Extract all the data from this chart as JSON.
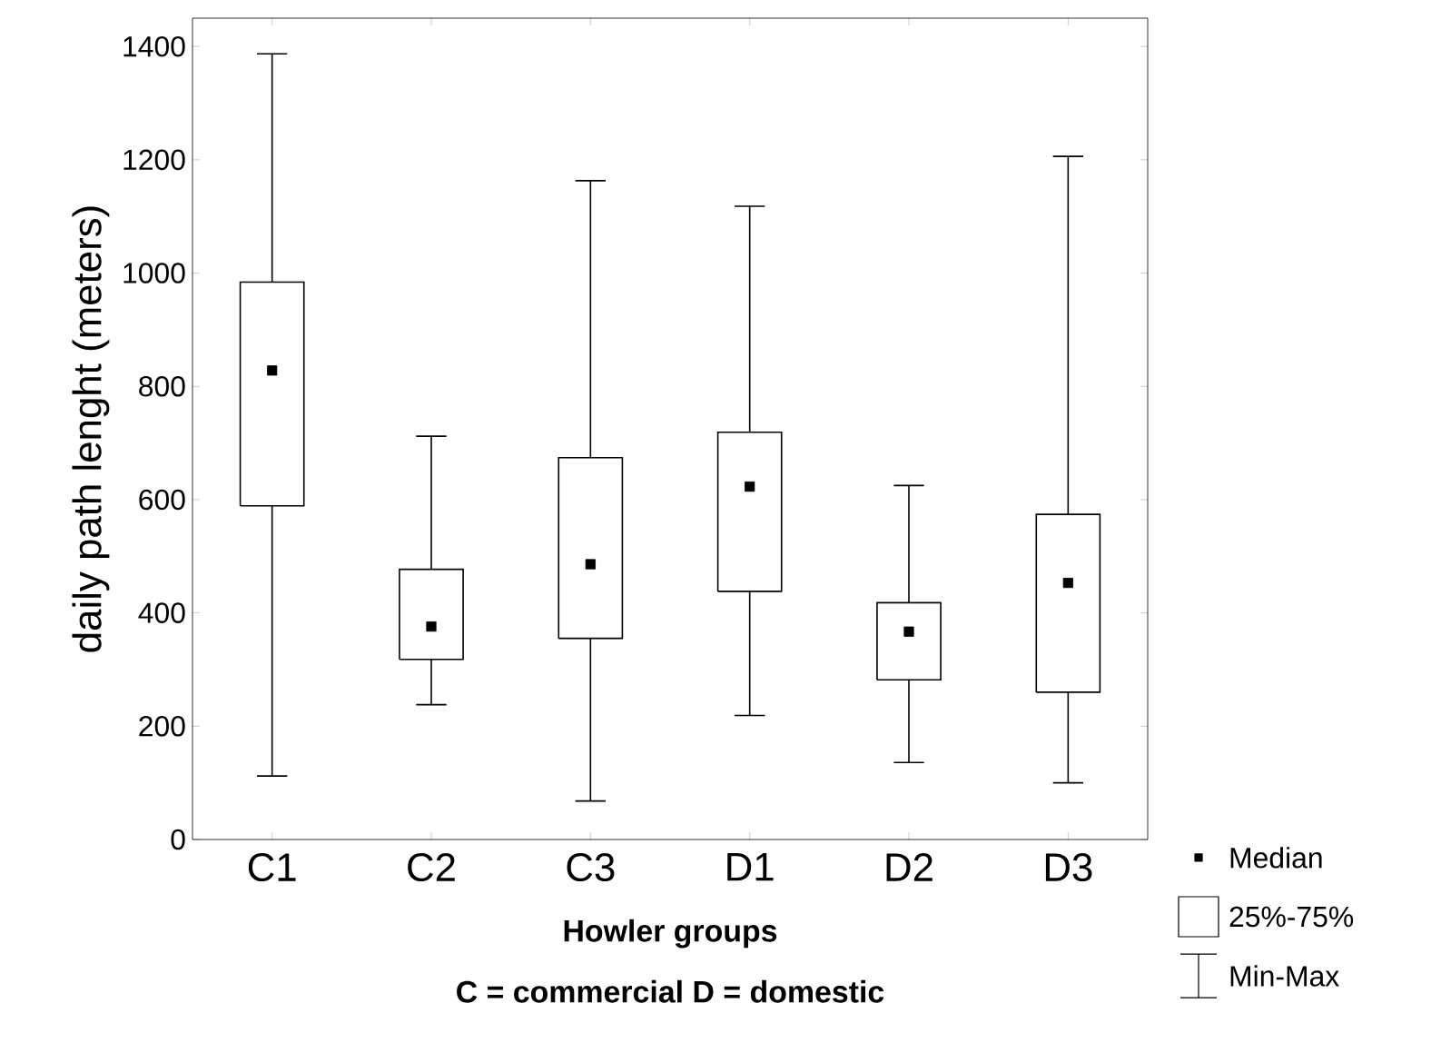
{
  "chart_data": {
    "type": "box",
    "categories": [
      "C1",
      "C2",
      "C3",
      "D1",
      "D2",
      "D3"
    ],
    "boxes": [
      {
        "low": 112,
        "q1": 589,
        "median": 828,
        "q3": 984,
        "high": 1387
      },
      {
        "low": 238,
        "q1": 318,
        "median": 376,
        "q3": 477,
        "high": 712
      },
      {
        "low": 68,
        "q1": 355,
        "median": 486,
        "q3": 674,
        "high": 1163
      },
      {
        "low": 219,
        "q1": 438,
        "median": 623,
        "q3": 719,
        "high": 1118
      },
      {
        "low": 136,
        "q1": 282,
        "median": 367,
        "q3": 418,
        "high": 625
      },
      {
        "low": 100,
        "q1": 260,
        "median": 453,
        "q3": 574,
        "high": 1206
      }
    ],
    "ylabel": "daily path lenght (meters)",
    "xlabel": "Howler groups",
    "annotations": [
      "C =  commercial D = domestic",
      "Median",
      "25%-75%",
      "Min-Max"
    ],
    "ylim": [
      0,
      1450
    ],
    "yticks": [
      0,
      200,
      400,
      600,
      800,
      1000,
      1200,
      1400
    ],
    "marker": "square",
    "grid": false
  }
}
